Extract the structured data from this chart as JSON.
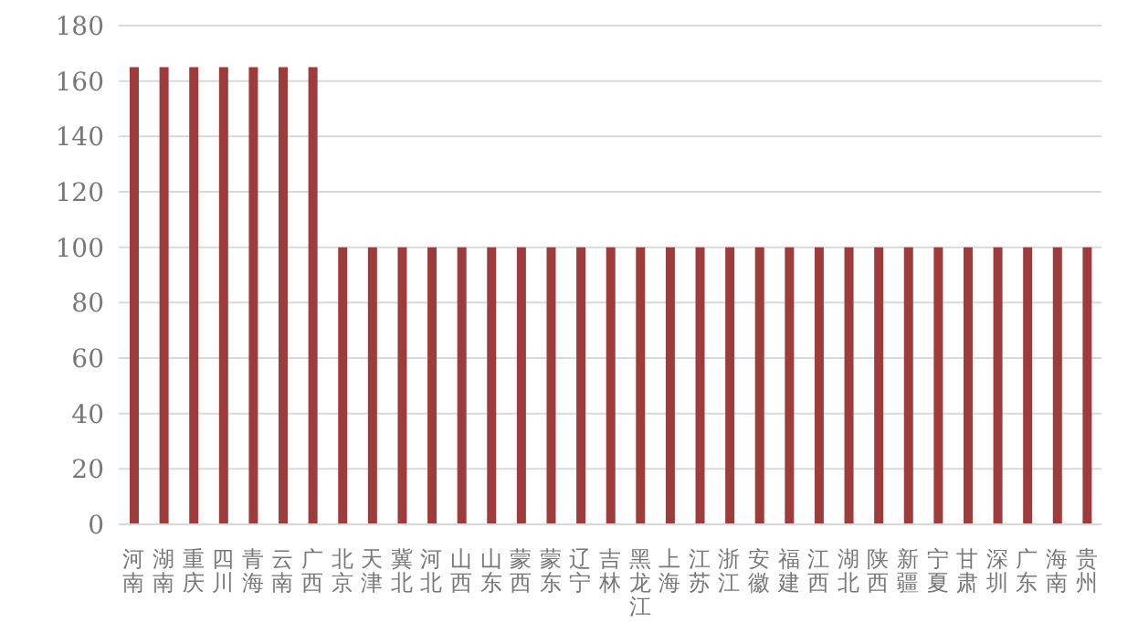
{
  "chart_data": {
    "type": "bar",
    "categories": [
      "河南",
      "湖南",
      "重庆",
      "四川",
      "青海",
      "云南",
      "广西",
      "北京",
      "天津",
      "冀北",
      "河北",
      "山西",
      "山东",
      "蒙西",
      "蒙东",
      "辽宁",
      "吉林",
      "黑龙江",
      "上海",
      "江苏",
      "浙江",
      "安徽",
      "福建",
      "江西",
      "湖北",
      "陕西",
      "新疆",
      "宁夏",
      "甘肃",
      "深圳",
      "广东",
      "海南",
      "贵州"
    ],
    "values": [
      165,
      165,
      165,
      165,
      165,
      165,
      165,
      100,
      100,
      100,
      100,
      100,
      100,
      100,
      100,
      100,
      100,
      100,
      100,
      100,
      100,
      100,
      100,
      100,
      100,
      100,
      100,
      100,
      100,
      100,
      100,
      100,
      100
    ],
    "color": "#9e3b3b",
    "ylim": [
      0,
      180
    ],
    "yticks": [
      0,
      20,
      40,
      60,
      80,
      100,
      120,
      140,
      160,
      180
    ],
    "grid": "y",
    "legend": false
  }
}
